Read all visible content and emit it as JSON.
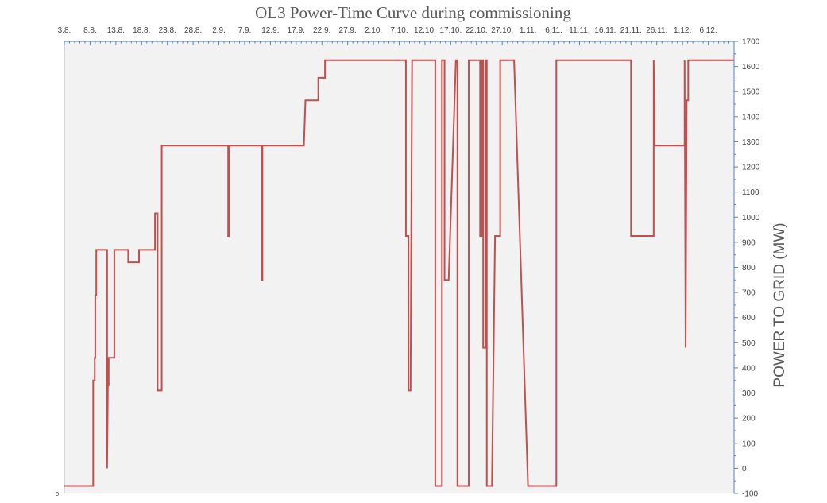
{
  "chart_data": {
    "type": "line",
    "title": "OL3 Power-Time Curve during commissioning",
    "xlabel": "",
    "ylabel": "POWER TO GRID (MW)",
    "origin_label": "0",
    "x_tick_labels": [
      "3.8.",
      "8.8.",
      "13.8.",
      "18.8.",
      "23.8.",
      "28.8.",
      "2.9.",
      "7.9.",
      "12.9.",
      "17.9.",
      "22.9.",
      "27.9.",
      "2.10.",
      "7.10.",
      "12.10.",
      "17.10.",
      "22.10.",
      "27.10.",
      "1.11.",
      "6.11.",
      "11.11.",
      "16.11.",
      "21.11.",
      "26.11.",
      "1.12.",
      "6.12."
    ],
    "x_unit": "days since 3.8.",
    "xlim": [
      0,
      130
    ],
    "ylim": [
      -100,
      1700
    ],
    "y_ticks": [
      -100,
      0,
      100,
      200,
      300,
      400,
      500,
      600,
      700,
      800,
      900,
      1000,
      1100,
      1200,
      1300,
      1400,
      1500,
      1600,
      1700
    ],
    "grid": false,
    "plot_background": "#f2f2f2",
    "series": [
      {
        "name": "",
        "color": "#c0504d",
        "points": [
          [
            0,
            -70
          ],
          [
            5.6,
            -70
          ],
          [
            5.6,
            350
          ],
          [
            5.9,
            350
          ],
          [
            5.9,
            440
          ],
          [
            6.0,
            440
          ],
          [
            6.0,
            690
          ],
          [
            6.2,
            690
          ],
          [
            6.2,
            870
          ],
          [
            8.3,
            870
          ],
          [
            8.3,
            0
          ],
          [
            8.45,
            330
          ],
          [
            8.6,
            330
          ],
          [
            8.6,
            440
          ],
          [
            9.7,
            440
          ],
          [
            9.7,
            870
          ],
          [
            12.4,
            870
          ],
          [
            12.4,
            820
          ],
          [
            14.5,
            820
          ],
          [
            14.5,
            870
          ],
          [
            17.6,
            870
          ],
          [
            17.6,
            1015
          ],
          [
            18.1,
            1015
          ],
          [
            18.1,
            310
          ],
          [
            18.9,
            310
          ],
          [
            18.9,
            1285
          ],
          [
            31.8,
            1285
          ],
          [
            31.8,
            925
          ],
          [
            31.95,
            925
          ],
          [
            31.95,
            1285
          ],
          [
            38.3,
            1285
          ],
          [
            38.3,
            750
          ],
          [
            38.45,
            750
          ],
          [
            38.45,
            1285
          ],
          [
            46.5,
            1285
          ],
          [
            46.8,
            1465
          ],
          [
            49.3,
            1465
          ],
          [
            49.3,
            1555
          ],
          [
            50.6,
            1555
          ],
          [
            50.6,
            1625
          ],
          [
            66.3,
            1625
          ],
          [
            66.3,
            925
          ],
          [
            66.8,
            925
          ],
          [
            66.8,
            310
          ],
          [
            67.2,
            310
          ],
          [
            67.5,
            1625
          ],
          [
            72.0,
            1625
          ],
          [
            72.0,
            -70
          ],
          [
            73.3,
            -70
          ],
          [
            73.3,
            1625
          ],
          [
            73.8,
            1625
          ],
          [
            73.8,
            750
          ],
          [
            74.6,
            750
          ],
          [
            76.0,
            1625
          ],
          [
            76.3,
            1625
          ],
          [
            76.3,
            -70
          ],
          [
            78.5,
            -70
          ],
          [
            78.5,
            1625
          ],
          [
            80.7,
            1625
          ],
          [
            80.7,
            925
          ],
          [
            81.1,
            925
          ],
          [
            81.1,
            1625
          ],
          [
            81.3,
            1625
          ],
          [
            81.3,
            480
          ],
          [
            81.8,
            480
          ],
          [
            81.8,
            1625
          ],
          [
            82.0,
            1625
          ],
          [
            82.0,
            -70
          ],
          [
            83.0,
            -70
          ],
          [
            83.6,
            925
          ],
          [
            84.6,
            925
          ],
          [
            84.6,
            1625
          ],
          [
            87.3,
            1625
          ],
          [
            90.0,
            -70
          ],
          [
            95.5,
            -70
          ],
          [
            95.5,
            1625
          ],
          [
            110.0,
            1625
          ],
          [
            110.0,
            925
          ],
          [
            114.4,
            925
          ],
          [
            114.4,
            1625
          ],
          [
            114.6,
            1285
          ],
          [
            120.4,
            1285
          ],
          [
            120.4,
            1625
          ],
          [
            120.6,
            480
          ],
          [
            120.8,
            1465
          ],
          [
            121.1,
            1465
          ],
          [
            121.1,
            1625
          ],
          [
            130,
            1625
          ]
        ]
      }
    ]
  }
}
